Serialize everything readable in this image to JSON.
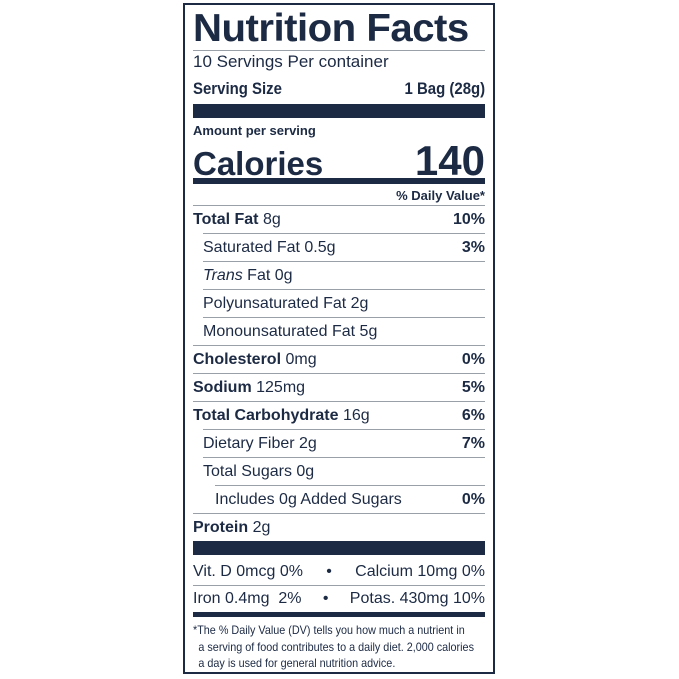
{
  "title": "Nutrition Facts",
  "servings_per_container": "10 Servings Per container",
  "serving_size": {
    "label": "Serving Size",
    "value": "1 Bag (28g)"
  },
  "amount_per_serving": "Amount per serving",
  "calories": {
    "label": "Calories",
    "value": "140"
  },
  "daily_value_header": "% Daily Value*",
  "nutrients": [
    {
      "name": "Total Fat",
      "amount": "8g",
      "dv": "10%"
    },
    {
      "name": "Saturated Fat",
      "amount": "0.5g",
      "dv": "3%"
    },
    {
      "name": "Trans",
      "name_rest": "Fat",
      "amount": "0g",
      "dv": ""
    },
    {
      "name": "Polyunsaturated Fat",
      "amount": "2g",
      "dv": ""
    },
    {
      "name": "Monounsaturated Fat",
      "amount": "5g",
      "dv": ""
    },
    {
      "name": "Cholesterol",
      "amount": "0mg",
      "dv": "0%"
    },
    {
      "name": "Sodium",
      "amount": "125mg",
      "dv": "5%"
    },
    {
      "name": "Total Carbohydrate",
      "amount": "16g",
      "dv": "6%"
    },
    {
      "name": "Dietary Fiber",
      "amount": "2g",
      "dv": "7%"
    },
    {
      "name": "Total Sugars",
      "amount": "0g",
      "dv": ""
    },
    {
      "name": "Includes 0g Added Sugars",
      "amount": "",
      "dv": "0%"
    },
    {
      "name": "Protein",
      "amount": "2g",
      "dv": ""
    }
  ],
  "vitamins": [
    {
      "left": "Vit. D 0mcg 0%",
      "bullet": "•",
      "right": "Calcium 10mg 0%"
    },
    {
      "left": "Iron 0.4mg  2%",
      "bullet": "•",
      "right": "Potas. 430mg 10%"
    }
  ],
  "footnote": [
    "*The % Daily Value (DV) tells you how much a nutrient in",
    "a serving of food contributes to a daily diet. 2,000 calories",
    "a day is used for general nutrition advice."
  ],
  "colors": {
    "ink": "#1c2a44",
    "rule": "#9aa0a8"
  }
}
